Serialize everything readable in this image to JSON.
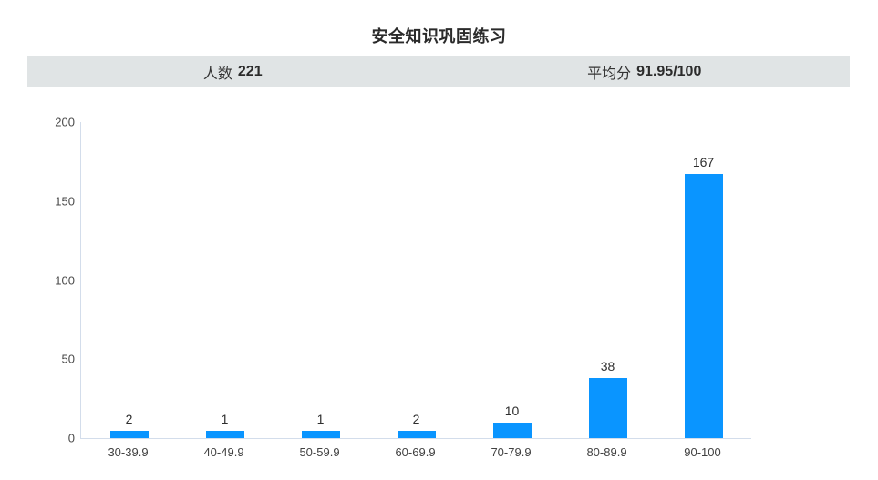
{
  "title": "安全知识巩固练习",
  "stats": {
    "participants_label": "人数",
    "participants_value": "221",
    "average_label": "平均分",
    "average_value": "91.95/100"
  },
  "colors": {
    "bar": "#0a95ff",
    "stats_bar_bg": "#e0e4e5",
    "axis_line": "#d3ddeb"
  },
  "chart_data": {
    "type": "bar",
    "categories": [
      "30-39.9",
      "40-49.9",
      "50-59.9",
      "60-69.9",
      "70-79.9",
      "80-89.9",
      "90-100"
    ],
    "values": [
      2,
      1,
      1,
      2,
      10,
      38,
      167
    ],
    "title": "安全知识巩固练习",
    "xlabel": "",
    "ylabel": "",
    "ylim": [
      0,
      200
    ],
    "yticks": [
      0,
      50,
      100,
      150,
      200
    ],
    "grid": false,
    "legend": false,
    "data_labels": true
  }
}
